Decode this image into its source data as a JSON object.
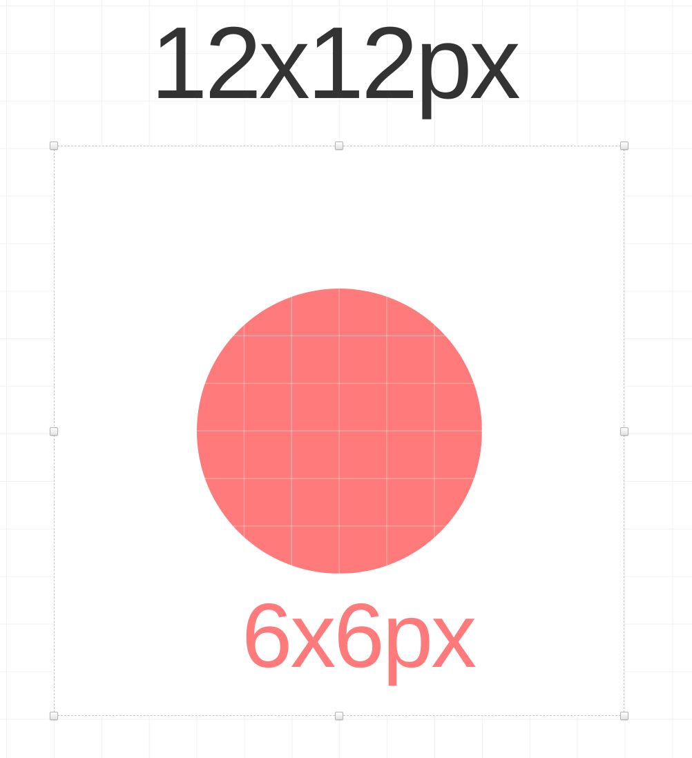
{
  "outer_label": "12x12px",
  "inner_label": "6x6px",
  "colors": {
    "circle_fill": "#ff7a7a",
    "outer_label_text": "#333333",
    "inner_label_text": "#ff7a7a",
    "frame_border": "#c4c4c4"
  }
}
